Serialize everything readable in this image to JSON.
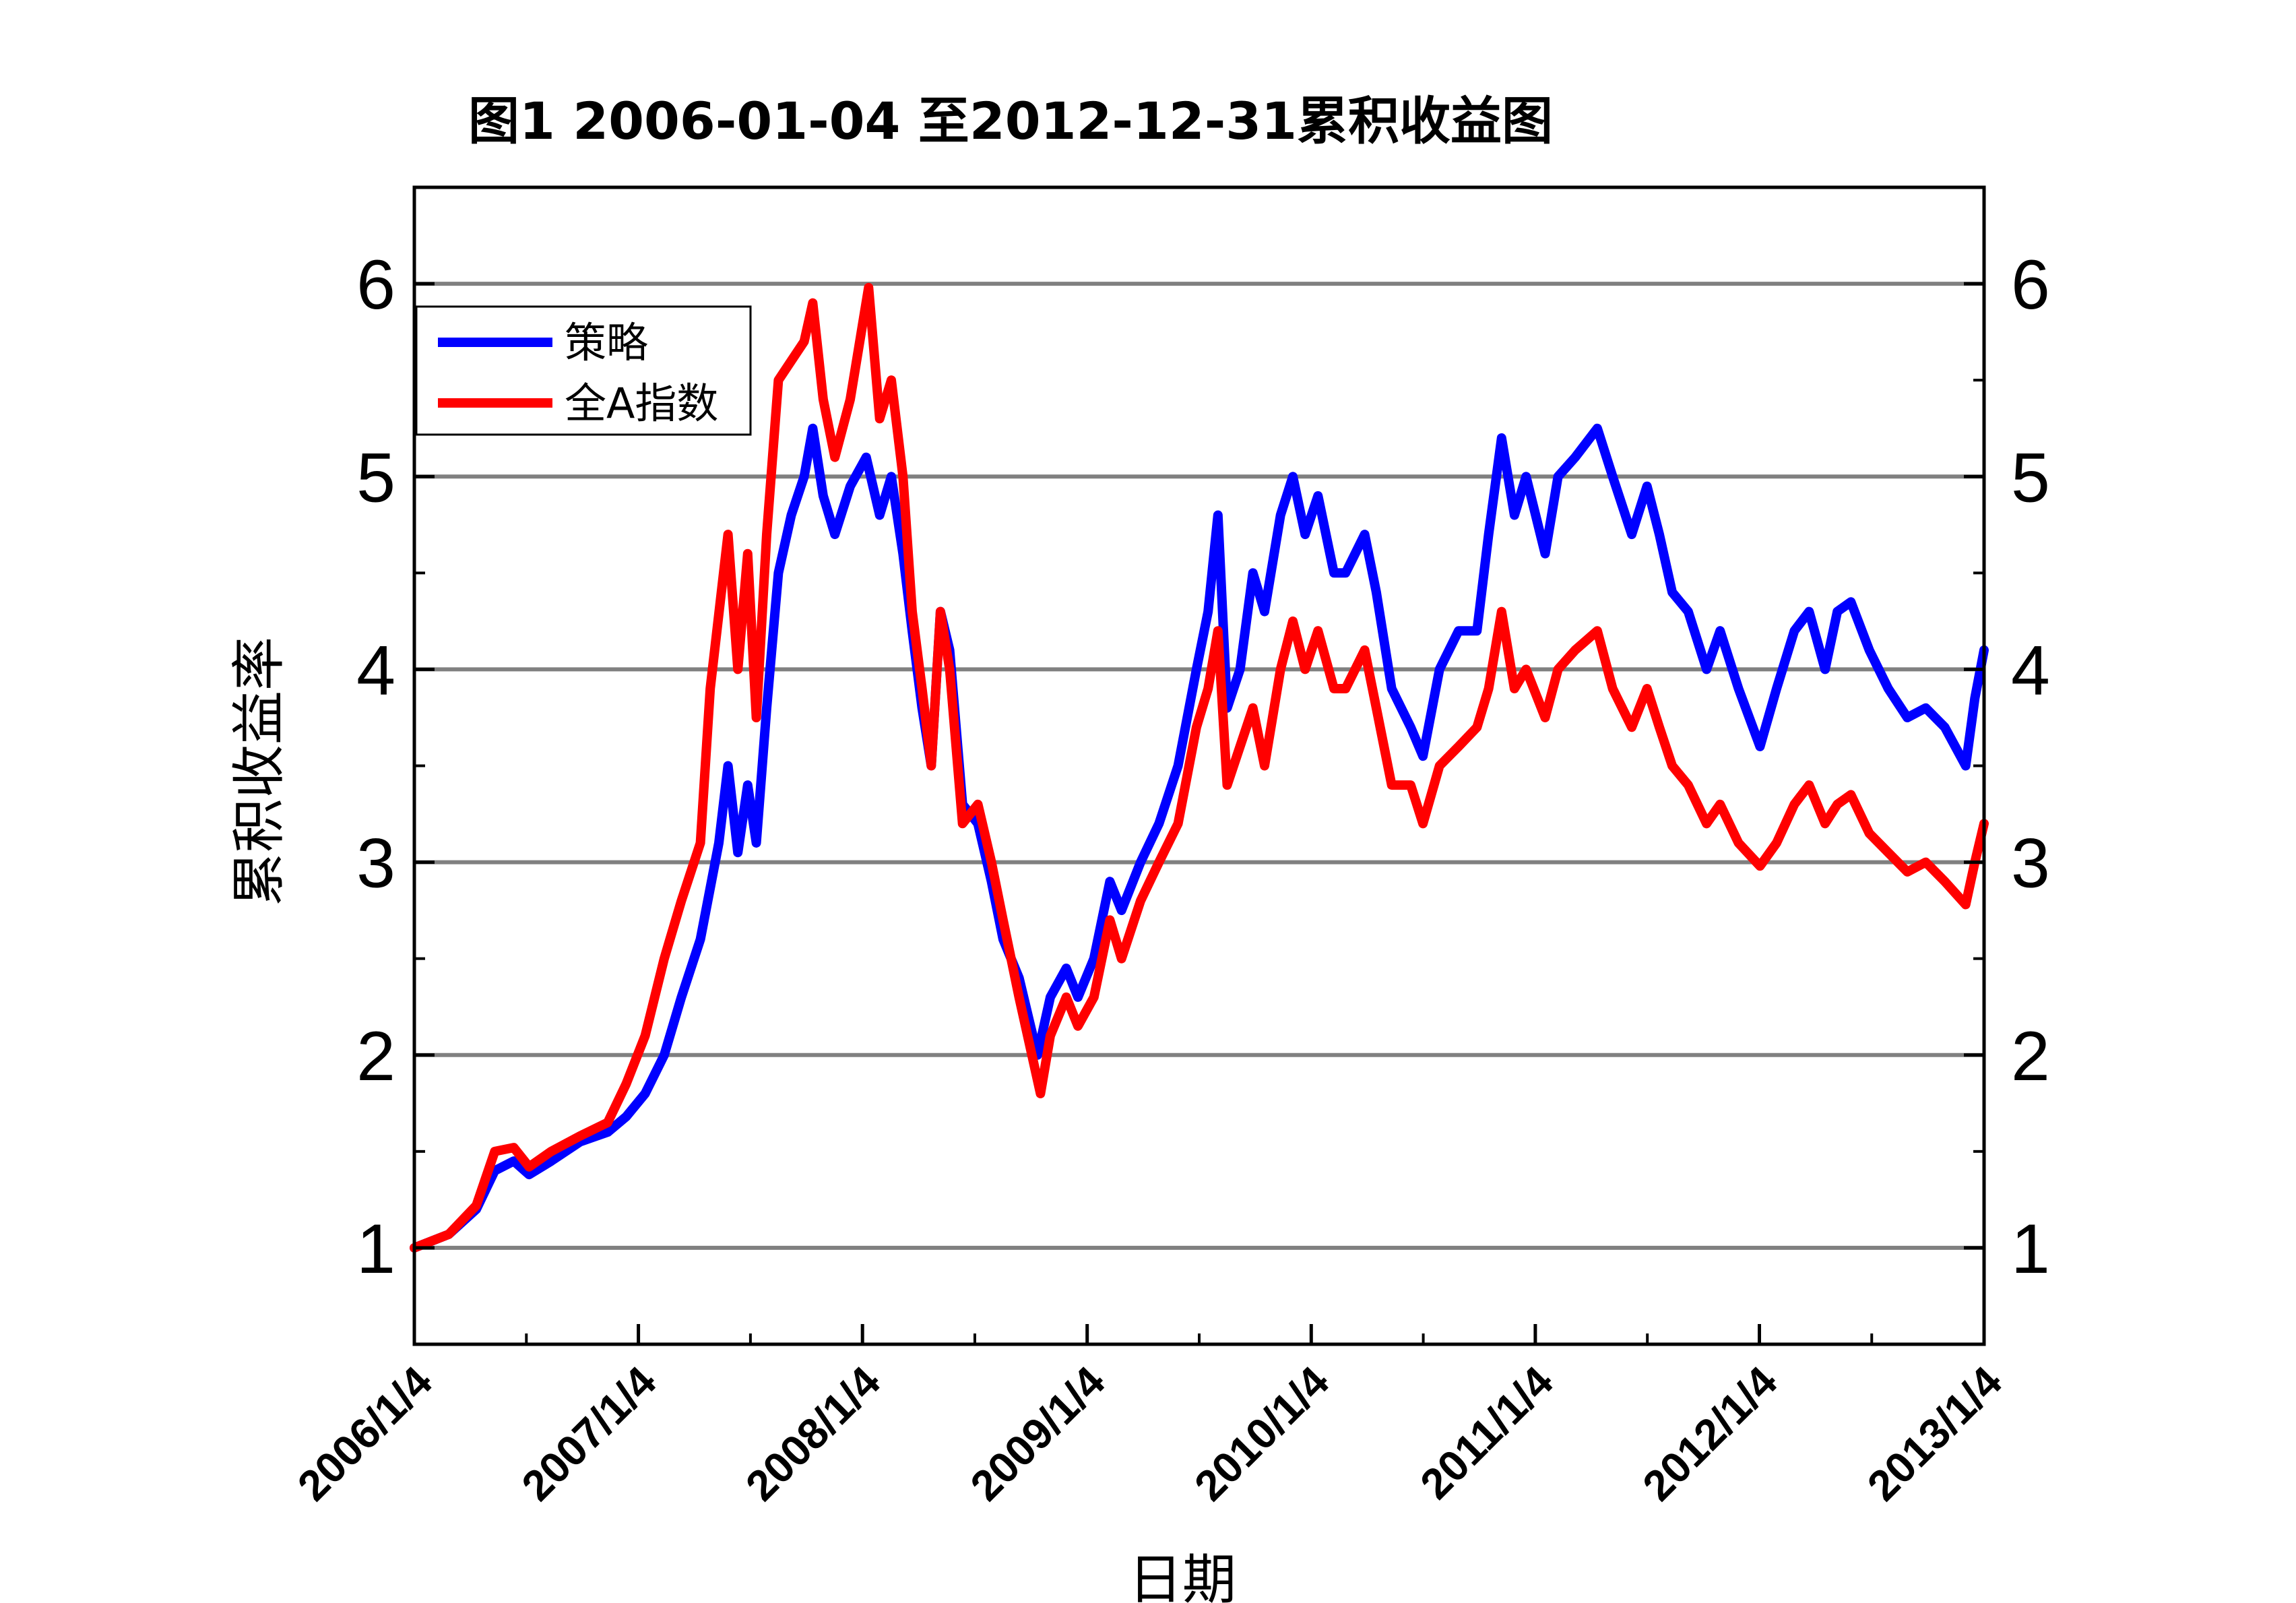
{
  "chart_data": {
    "type": "line",
    "title": "图1 2006-01-04 至2012-12-31累积收益图",
    "xlabel": "日期",
    "ylabel": "累积收益率",
    "xlim": [
      "2006-01-04",
      "2013-01-04"
    ],
    "ylim": [
      0.5,
      6.5
    ],
    "yticks": [
      1,
      2,
      3,
      4,
      5,
      6
    ],
    "xticks": [
      "2006/1/4",
      "2007/1/4",
      "2008/1/4",
      "2009/1/4",
      "2010/1/4",
      "2011/1/4",
      "2012/1/4",
      "2013/1/4"
    ],
    "grid": true,
    "legend_position": "top-left",
    "series": [
      {
        "name": "策略",
        "color": "#0000ff",
        "points": [
          [
            "2006-01-04",
            1.0
          ],
          [
            "2006-03-01",
            1.07
          ],
          [
            "2006-04-15",
            1.2
          ],
          [
            "2006-05-15",
            1.4
          ],
          [
            "2006-06-15",
            1.45
          ],
          [
            "2006-07-10",
            1.38
          ],
          [
            "2006-08-15",
            1.45
          ],
          [
            "2006-10-01",
            1.55
          ],
          [
            "2006-11-15",
            1.6
          ],
          [
            "2006-12-15",
            1.68
          ],
          [
            "2007-01-15",
            1.8
          ],
          [
            "2007-02-15",
            2.0
          ],
          [
            "2007-03-15",
            2.3
          ],
          [
            "2007-04-15",
            2.6
          ],
          [
            "2007-05-15",
            3.1
          ],
          [
            "2007-05-30",
            3.5
          ],
          [
            "2007-06-15",
            3.05
          ],
          [
            "2007-07-01",
            3.4
          ],
          [
            "2007-07-15",
            3.1
          ],
          [
            "2007-08-01",
            3.8
          ],
          [
            "2007-08-20",
            4.5
          ],
          [
            "2007-09-10",
            4.8
          ],
          [
            "2007-10-01",
            5.0
          ],
          [
            "2007-10-15",
            5.25
          ],
          [
            "2007-11-01",
            4.9
          ],
          [
            "2007-11-20",
            4.7
          ],
          [
            "2007-12-15",
            4.95
          ],
          [
            "2008-01-10",
            5.1
          ],
          [
            "2008-02-01",
            4.8
          ],
          [
            "2008-02-20",
            5.0
          ],
          [
            "2008-03-10",
            4.6
          ],
          [
            "2008-03-25",
            4.2
          ],
          [
            "2008-04-10",
            3.8
          ],
          [
            "2008-04-25",
            3.5
          ],
          [
            "2008-05-10",
            4.3
          ],
          [
            "2008-05-25",
            4.1
          ],
          [
            "2008-06-15",
            3.3
          ],
          [
            "2008-07-10",
            3.2
          ],
          [
            "2008-08-01",
            2.9
          ],
          [
            "2008-08-20",
            2.6
          ],
          [
            "2008-09-15",
            2.4
          ],
          [
            "2008-10-15",
            2.0
          ],
          [
            "2008-11-05",
            2.3
          ],
          [
            "2008-12-01",
            2.45
          ],
          [
            "2008-12-20",
            2.3
          ],
          [
            "2009-01-15",
            2.5
          ],
          [
            "2009-02-10",
            2.9
          ],
          [
            "2009-03-01",
            2.75
          ],
          [
            "2009-04-01",
            3.0
          ],
          [
            "2009-05-01",
            3.2
          ],
          [
            "2009-06-01",
            3.5
          ],
          [
            "2009-07-01",
            4.0
          ],
          [
            "2009-07-20",
            4.3
          ],
          [
            "2009-08-05",
            4.8
          ],
          [
            "2009-08-20",
            3.8
          ],
          [
            "2009-09-10",
            4.0
          ],
          [
            "2009-10-01",
            4.5
          ],
          [
            "2009-10-20",
            4.3
          ],
          [
            "2009-11-15",
            4.8
          ],
          [
            "2009-12-05",
            5.0
          ],
          [
            "2009-12-25",
            4.7
          ],
          [
            "2010-01-15",
            4.9
          ],
          [
            "2010-02-10",
            4.5
          ],
          [
            "2010-03-01",
            4.5
          ],
          [
            "2010-04-01",
            4.7
          ],
          [
            "2010-04-20",
            4.4
          ],
          [
            "2010-05-15",
            3.9
          ],
          [
            "2010-06-15",
            3.7
          ],
          [
            "2010-07-05",
            3.55
          ],
          [
            "2010-08-01",
            4.0
          ],
          [
            "2010-09-01",
            4.2
          ],
          [
            "2010-10-01",
            4.2
          ],
          [
            "2010-10-20",
            4.7
          ],
          [
            "2010-11-10",
            5.2
          ],
          [
            "2010-12-01",
            4.8
          ],
          [
            "2010-12-20",
            5.0
          ],
          [
            "2011-01-20",
            4.6
          ],
          [
            "2011-02-10",
            5.0
          ],
          [
            "2011-03-10",
            5.1
          ],
          [
            "2011-04-15",
            5.25
          ],
          [
            "2011-05-10",
            5.0
          ],
          [
            "2011-06-10",
            4.7
          ],
          [
            "2011-07-05",
            4.95
          ],
          [
            "2011-07-25",
            4.7
          ],
          [
            "2011-08-15",
            4.4
          ],
          [
            "2011-09-10",
            4.3
          ],
          [
            "2011-10-10",
            4.0
          ],
          [
            "2011-11-01",
            4.2
          ],
          [
            "2011-12-01",
            3.9
          ],
          [
            "2012-01-05",
            3.6
          ],
          [
            "2012-02-01",
            3.9
          ],
          [
            "2012-03-01",
            4.2
          ],
          [
            "2012-03-25",
            4.3
          ],
          [
            "2012-04-20",
            4.0
          ],
          [
            "2012-05-10",
            4.3
          ],
          [
            "2012-06-01",
            4.35
          ],
          [
            "2012-07-01",
            4.1
          ],
          [
            "2012-08-01",
            3.9
          ],
          [
            "2012-09-01",
            3.75
          ],
          [
            "2012-10-01",
            3.8
          ],
          [
            "2012-11-01",
            3.7
          ],
          [
            "2012-12-05",
            3.5
          ],
          [
            "2012-12-20",
            3.85
          ],
          [
            "2013-01-04",
            4.1
          ]
        ]
      },
      {
        "name": "全A指数",
        "color": "#ff0000",
        "points": [
          [
            "2006-01-04",
            1.0
          ],
          [
            "2006-03-01",
            1.07
          ],
          [
            "2006-04-15",
            1.22
          ],
          [
            "2006-05-15",
            1.5
          ],
          [
            "2006-06-15",
            1.52
          ],
          [
            "2006-07-10",
            1.42
          ],
          [
            "2006-08-15",
            1.5
          ],
          [
            "2006-10-01",
            1.58
          ],
          [
            "2006-11-15",
            1.65
          ],
          [
            "2006-12-15",
            1.85
          ],
          [
            "2007-01-15",
            2.1
          ],
          [
            "2007-02-15",
            2.5
          ],
          [
            "2007-03-15",
            2.8
          ],
          [
            "2007-04-15",
            3.1
          ],
          [
            "2007-05-01",
            3.9
          ],
          [
            "2007-05-30",
            4.7
          ],
          [
            "2007-06-15",
            4.0
          ],
          [
            "2007-07-01",
            4.6
          ],
          [
            "2007-07-15",
            3.75
          ],
          [
            "2007-08-01",
            4.7
          ],
          [
            "2007-08-20",
            5.5
          ],
          [
            "2007-09-10",
            5.6
          ],
          [
            "2007-10-01",
            5.7
          ],
          [
            "2007-10-15",
            5.9
          ],
          [
            "2007-11-01",
            5.4
          ],
          [
            "2007-11-20",
            5.1
          ],
          [
            "2007-12-15",
            5.4
          ],
          [
            "2008-01-14",
            5.98
          ],
          [
            "2008-02-01",
            5.3
          ],
          [
            "2008-02-20",
            5.5
          ],
          [
            "2008-03-10",
            5.0
          ],
          [
            "2008-03-25",
            4.3
          ],
          [
            "2008-04-10",
            3.9
          ],
          [
            "2008-04-25",
            3.5
          ],
          [
            "2008-05-10",
            4.3
          ],
          [
            "2008-05-25",
            4.0
          ],
          [
            "2008-06-15",
            3.2
          ],
          [
            "2008-07-10",
            3.3
          ],
          [
            "2008-08-01",
            3.0
          ],
          [
            "2008-08-20",
            2.7
          ],
          [
            "2008-09-15",
            2.3
          ],
          [
            "2008-10-20",
            1.8
          ],
          [
            "2008-11-05",
            2.1
          ],
          [
            "2008-12-01",
            2.3
          ],
          [
            "2008-12-20",
            2.15
          ],
          [
            "2009-01-15",
            2.3
          ],
          [
            "2009-02-10",
            2.7
          ],
          [
            "2009-03-01",
            2.5
          ],
          [
            "2009-04-01",
            2.8
          ],
          [
            "2009-05-01",
            3.0
          ],
          [
            "2009-06-01",
            3.2
          ],
          [
            "2009-07-01",
            3.7
          ],
          [
            "2009-07-20",
            3.9
          ],
          [
            "2009-08-05",
            4.2
          ],
          [
            "2009-08-20",
            3.4
          ],
          [
            "2009-09-10",
            3.6
          ],
          [
            "2009-10-01",
            3.8
          ],
          [
            "2009-10-20",
            3.5
          ],
          [
            "2009-11-15",
            4.0
          ],
          [
            "2009-12-05",
            4.25
          ],
          [
            "2009-12-25",
            4.0
          ],
          [
            "2010-01-15",
            4.2
          ],
          [
            "2010-02-10",
            3.9
          ],
          [
            "2010-03-01",
            3.9
          ],
          [
            "2010-04-01",
            4.1
          ],
          [
            "2010-04-20",
            3.8
          ],
          [
            "2010-05-15",
            3.4
          ],
          [
            "2010-06-15",
            3.4
          ],
          [
            "2010-07-05",
            3.2
          ],
          [
            "2010-08-01",
            3.5
          ],
          [
            "2010-09-01",
            3.6
          ],
          [
            "2010-10-01",
            3.7
          ],
          [
            "2010-10-20",
            3.9
          ],
          [
            "2010-11-10",
            4.3
          ],
          [
            "2010-12-01",
            3.9
          ],
          [
            "2010-12-20",
            4.0
          ],
          [
            "2011-01-20",
            3.75
          ],
          [
            "2011-02-10",
            4.0
          ],
          [
            "2011-03-10",
            4.1
          ],
          [
            "2011-04-15",
            4.2
          ],
          [
            "2011-05-10",
            3.9
          ],
          [
            "2011-06-10",
            3.7
          ],
          [
            "2011-07-05",
            3.9
          ],
          [
            "2011-07-25",
            3.7
          ],
          [
            "2011-08-15",
            3.5
          ],
          [
            "2011-09-10",
            3.4
          ],
          [
            "2011-10-10",
            3.2
          ],
          [
            "2011-11-01",
            3.3
          ],
          [
            "2011-12-01",
            3.1
          ],
          [
            "2012-01-05",
            2.98
          ],
          [
            "2012-02-01",
            3.1
          ],
          [
            "2012-03-01",
            3.3
          ],
          [
            "2012-03-25",
            3.4
          ],
          [
            "2012-04-20",
            3.2
          ],
          [
            "2012-05-10",
            3.3
          ],
          [
            "2012-06-01",
            3.35
          ],
          [
            "2012-07-01",
            3.15
          ],
          [
            "2012-08-01",
            3.05
          ],
          [
            "2012-09-01",
            2.95
          ],
          [
            "2012-10-01",
            3.0
          ],
          [
            "2012-11-01",
            2.9
          ],
          [
            "2012-12-05",
            2.78
          ],
          [
            "2012-12-20",
            3.0
          ],
          [
            "2013-01-04",
            3.2
          ]
        ]
      }
    ]
  }
}
